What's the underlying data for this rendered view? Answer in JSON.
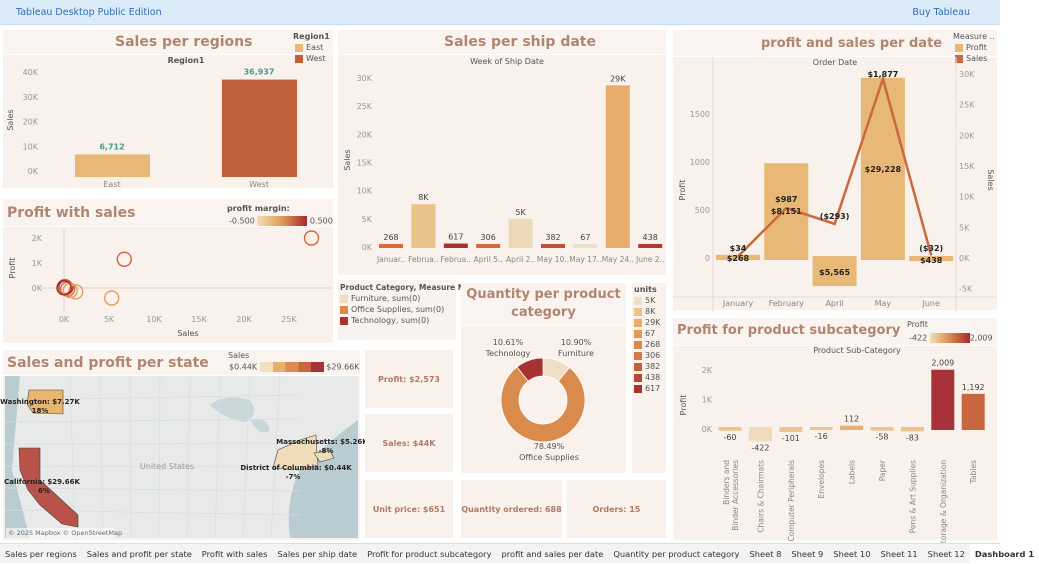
{
  "app": {
    "title": "Tableau Desktop Public Edition",
    "buy": "Buy Tableau"
  },
  "colors": {
    "title": "#b08672",
    "east": "#e8b877",
    "west": "#c0603a",
    "profit": "#e8b877",
    "sales_line": "#c86a3e",
    "label_teal": "#4a9a8f"
  },
  "regions": {
    "title": "Sales per regions",
    "legend_title": "Region1",
    "legend": [
      "East",
      "West"
    ],
    "chart_data": {
      "type": "bar",
      "header": "Region1",
      "categories": [
        "East",
        "West"
      ],
      "values": [
        6712,
        36937
      ],
      "value_labels": [
        "6,712",
        "36,937"
      ],
      "ylabel": "Sales",
      "yticks": [
        "0K",
        "10K",
        "20K",
        "30K",
        "40K"
      ],
      "ylim": [
        0,
        40000
      ]
    }
  },
  "scatter": {
    "title": "Profit with sales",
    "legend_title": "profit margin:",
    "legend_min": "-0.500",
    "legend_max": "0.500",
    "chart_data": {
      "type": "scatter",
      "xlabel": "Sales",
      "ylabel": "Profit",
      "xticks": [
        "0K",
        "5K",
        "10K",
        "15K",
        "20K",
        "25K"
      ],
      "yticks": [
        "0K",
        "1K",
        "2K"
      ],
      "xlim": [
        0,
        29000
      ],
      "ylim": [
        -900,
        2400
      ],
      "points": [
        {
          "x": 27500,
          "y": 2000,
          "m": 0.07
        },
        {
          "x": 6700,
          "y": 1150,
          "m": 0.17
        },
        {
          "x": 5300,
          "y": -400,
          "m": -0.07
        },
        {
          "x": 200,
          "y": 20,
          "m": 0.5
        },
        {
          "x": 100,
          "y": 60,
          "m": 0.3
        },
        {
          "x": 400,
          "y": -40,
          "m": 0.1
        },
        {
          "x": 1300,
          "y": -150,
          "m": -0.2
        },
        {
          "x": 700,
          "y": -100,
          "m": -0.1
        },
        {
          "x": 0,
          "y": 10,
          "m": 0.4
        }
      ]
    }
  },
  "shipdate": {
    "title": "Sales per ship date",
    "chart_data": {
      "type": "bar",
      "header": "Week of Ship Date",
      "ylabel": "Sales",
      "ylim": [
        0,
        31000
      ],
      "yticks": [
        "0K",
        "5K",
        "10K",
        "15K",
        "20K",
        "25K",
        "30K"
      ],
      "categories": [
        "Januar..",
        "Februa..",
        "Februa..",
        "April 5..",
        "April 2..",
        "May 10..",
        "May 17..",
        "May 24..",
        "June 2.."
      ],
      "values": [
        268,
        7600,
        617,
        306,
        5000,
        382,
        67,
        28700,
        438
      ],
      "value_labels": [
        "268",
        "8K",
        "617",
        "306",
        "5K",
        "382",
        "67",
        "29K",
        "438"
      ],
      "colors": [
        "#d9693f",
        "#e8c38a",
        "#a83232",
        "#d06a44",
        "#ecd9b8",
        "#c0503a",
        "#ece0cc",
        "#e8ac6c",
        "#b13a32"
      ]
    }
  },
  "category_legend": {
    "title": "Product Category, Measure N..",
    "items": [
      {
        "label": "Furniture, sum(0)",
        "color": "#efdfc6"
      },
      {
        "label": "Office Supplies, sum(0)",
        "color": "#d98b4e"
      },
      {
        "label": "Technology, sum(0)",
        "color": "#a83232"
      }
    ]
  },
  "quantity": {
    "title": "Quantity per product category",
    "chart_data": {
      "type": "pie",
      "slices": [
        {
          "label": "Furniture",
          "pct": "10.90%",
          "value": 10.9,
          "color": "#efdfc6"
        },
        {
          "label": "Office Supplies",
          "pct": "78.49%",
          "value": 78.49,
          "color": "#d98b4e"
        },
        {
          "label": "Technology",
          "pct": "10.61%",
          "value": 10.61,
          "color": "#a83232"
        }
      ]
    }
  },
  "units_legend": {
    "title": "units",
    "items": [
      {
        "label": "5K",
        "color": "#efdfc6"
      },
      {
        "label": "8K",
        "color": "#ebc486"
      },
      {
        "label": "29K",
        "color": "#e8ac6c"
      },
      {
        "label": "67",
        "color": "#e29a5a"
      },
      {
        "label": "268",
        "color": "#d98b4e"
      },
      {
        "label": "306",
        "color": "#d07a46"
      },
      {
        "label": "382",
        "color": "#c4603c"
      },
      {
        "label": "438",
        "color": "#b8463a"
      },
      {
        "label": "617",
        "color": "#a83232"
      }
    ]
  },
  "kpis": {
    "profit": "Profit: $2,573",
    "sales": "Sales: $44K",
    "unit_price": "Unit price: $651",
    "quantity": "Quantity ordered:  688",
    "orders": "Orders: 15"
  },
  "profit_sales_date": {
    "title": "profit and sales per date",
    "legend_title": "Measure ..",
    "legend": [
      "Profit",
      "Sales"
    ],
    "chart_data": {
      "type": "bar+line",
      "header": "Order Date",
      "categories": [
        "January",
        "February",
        "April",
        "May",
        "June"
      ],
      "series": [
        {
          "name": "Profit",
          "values": [
            34,
            987,
            -293,
            1877,
            -32
          ],
          "labels": [
            "$34",
            "$987",
            "($293)",
            "$1,877",
            "($32)"
          ]
        },
        {
          "name": "Sales",
          "values": [
            268,
            8151,
            5565,
            29228,
            438
          ],
          "labels": [
            "$268",
            "$8,151",
            "$5,565",
            "$29,228",
            "$438"
          ]
        }
      ],
      "ylabel": "Profit",
      "y2label": "Sales",
      "yticks": [
        "0",
        "500",
        "1000",
        "1500"
      ],
      "y2ticks": [
        "-5K",
        "0K",
        "5K",
        "10K",
        "15K",
        "20K",
        "25K",
        "30K"
      ]
    }
  },
  "subcategory": {
    "title": "Profit for product subcategory",
    "legend_title": "Profit",
    "legend_min": "-422",
    "legend_max": "2,009",
    "chart_data": {
      "type": "bar",
      "header": "Product Sub-Category",
      "ylabel": "Profit",
      "yticks": [
        "0K",
        "1K",
        "2K"
      ],
      "categories": [
        "Binders and Binder Accessories",
        "Chairs & Chairmats",
        "Computer Peripherals",
        "Envelopes",
        "Labels",
        "Paper",
        "Pens & Art Supplies",
        "Storage & Organization",
        "Tables"
      ],
      "values": [
        -60,
        -422,
        -101,
        -16,
        112,
        -58,
        -83,
        2009,
        1192
      ],
      "value_labels": [
        "-60",
        "-422",
        "-101",
        "-16",
        "112",
        "-58",
        "-83",
        "2,009",
        "1,192"
      ]
    }
  },
  "map": {
    "title": "Sales and profit per state",
    "legend_title": "Sales",
    "legend_min": "$0.44K",
    "legend_max": "$29.66K",
    "copyright": "© 2025 Mapbox © OpenStreetMap",
    "country": "United States",
    "states": [
      {
        "name": "Washington",
        "label": "Washington: $7.27K",
        "pct": "18%"
      },
      {
        "name": "California",
        "label": "California: $29.66K",
        "pct": "6%"
      },
      {
        "name": "Massachusetts",
        "label": "Massachusetts: $5.26K",
        "pct": "-8%"
      },
      {
        "name": "District of Columbia",
        "label": "District of Columbia: $0.44K",
        "pct": "-7%"
      }
    ]
  },
  "tabs": [
    "Sales per regions",
    "Sales and profit per state",
    "Profit with sales",
    "Sales per ship date",
    "Profit for product subcategory",
    "profit and sales per date",
    "Quantity per product category",
    "Sheet 8",
    "Sheet 9",
    "Sheet 10",
    "Sheet 11",
    "Sheet 12",
    "Dashboard 1"
  ]
}
